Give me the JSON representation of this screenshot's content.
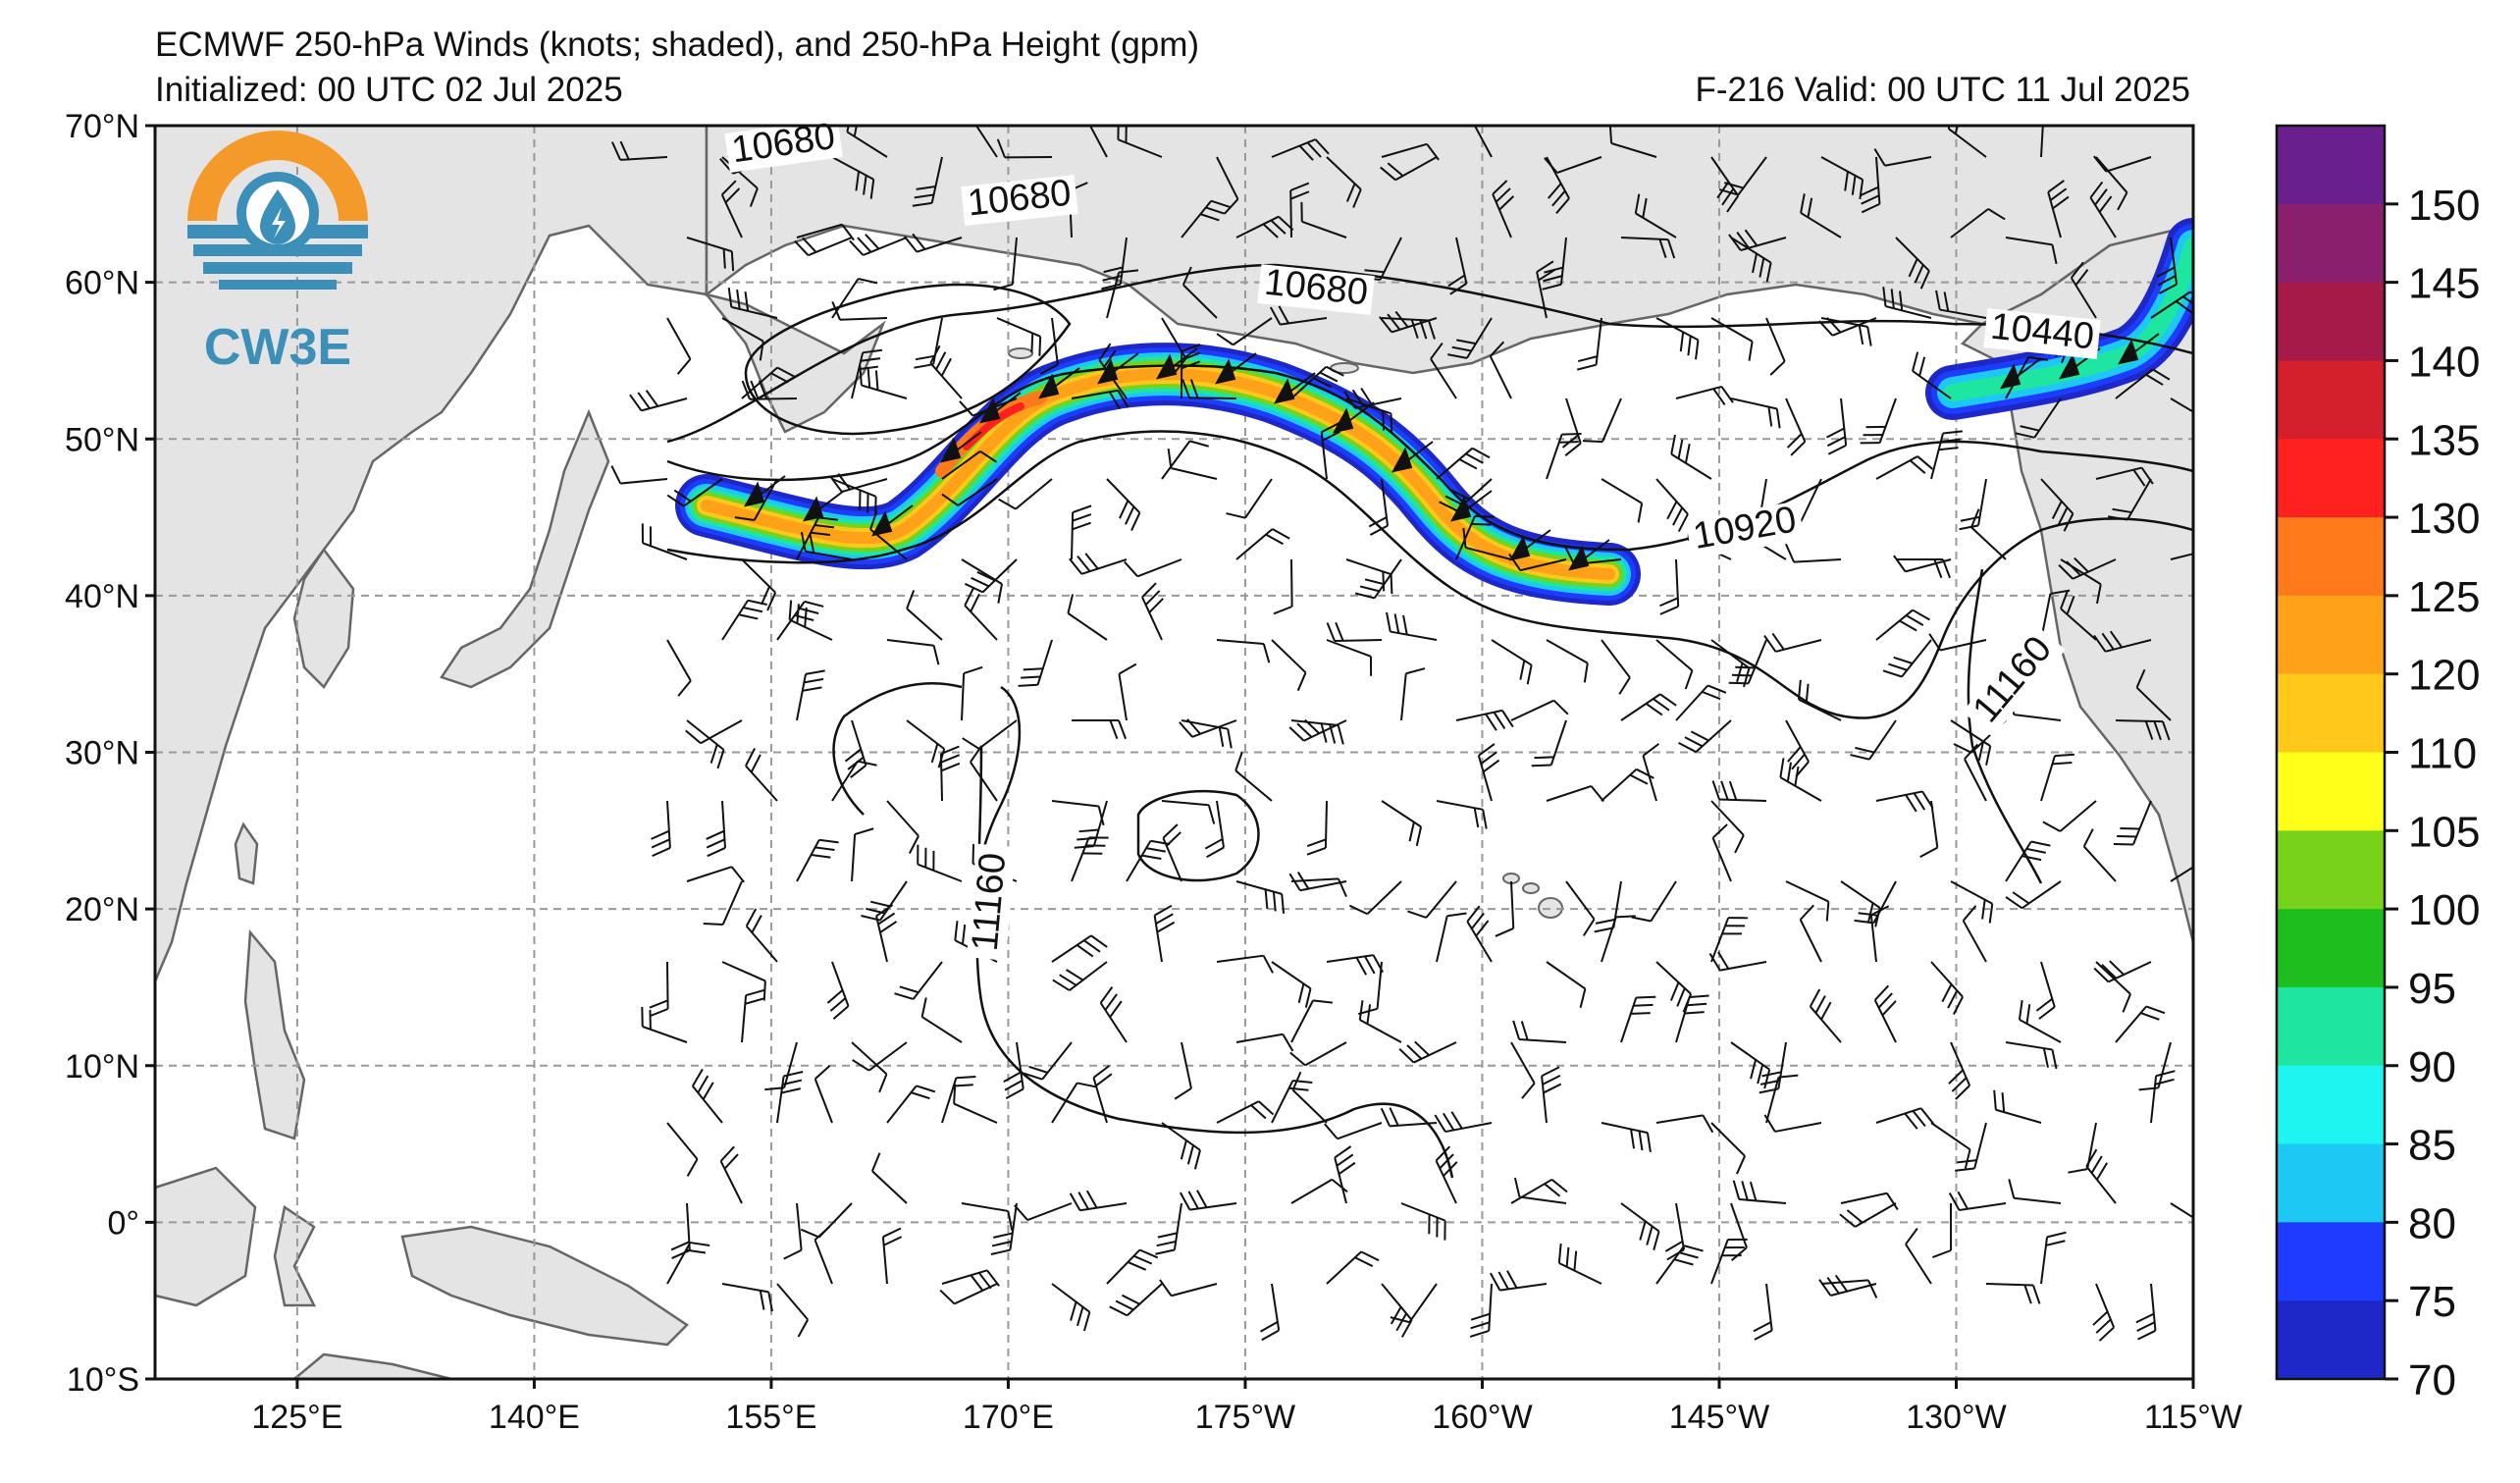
{
  "header": {
    "title": "ECMWF 250-hPa Winds (knots; shaded), and 250-hPa Height (gpm)",
    "initialized": "Initialized: 00 UTC 02 Jul 2025",
    "valid": "F-216  Valid: 00 UTC 11 Jul 2025"
  },
  "logo": {
    "text": "CW3E",
    "icon": "cw3e-logo-icon"
  },
  "axes": {
    "lat_labels": [
      "70°N",
      "60°N",
      "50°N",
      "40°N",
      "30°N",
      "20°N",
      "10°N",
      "0°",
      "10°S"
    ],
    "lon_labels": [
      "125°E",
      "140°E",
      "155°E",
      "170°E",
      "175°W",
      "160°W",
      "145°W",
      "130°W",
      "115°W"
    ]
  },
  "contour_labels": [
    "10680",
    "10680",
    "10680",
    "10440",
    "10920",
    "11160",
    "11160"
  ],
  "colorbar": {
    "labels": [
      "150",
      "145",
      "140",
      "135",
      "130",
      "125",
      "120",
      "110",
      "105",
      "100",
      "95",
      "90",
      "85",
      "80",
      "75",
      "70"
    ],
    "colors": [
      "#6a1f8f",
      "#8a1f6e",
      "#a61a4a",
      "#d41f2c",
      "#ff2020",
      "#ff7a1a",
      "#ffa21a",
      "#ffc81a",
      "#ffff1a",
      "#78d21a",
      "#1ebe1e",
      "#1ee6a0",
      "#1ef5f0",
      "#1ec8f5",
      "#1e3cff",
      "#1e28c8"
    ]
  },
  "map_colors": {
    "land": "#e4e4e4",
    "coast": "#666666",
    "grid": "#999999"
  }
}
